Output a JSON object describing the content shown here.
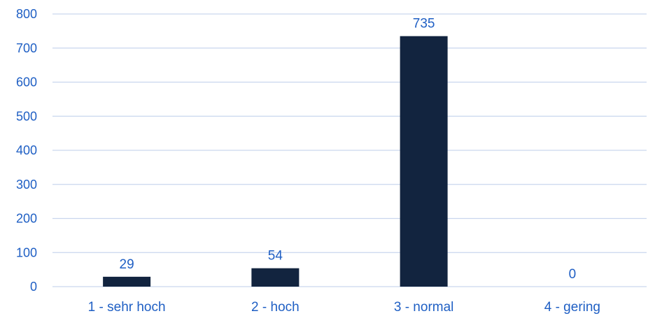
{
  "chart_data": {
    "type": "bar",
    "title": "",
    "xlabel": "",
    "ylabel": "",
    "categories": [
      "1 - sehr hoch",
      "2 - hoch",
      "3 - normal",
      "4 - gering"
    ],
    "values": [
      29,
      54,
      735,
      0
    ],
    "data_labels": [
      "29",
      "54",
      "735",
      "0"
    ],
    "ylim": [
      0,
      800
    ],
    "yticks": [
      0,
      100,
      200,
      300,
      400,
      500,
      600,
      700,
      800
    ],
    "ytick_labels": [
      "0",
      "100",
      "200",
      "300",
      "400",
      "500",
      "600",
      "700",
      "800"
    ],
    "grid": true,
    "legend": "none"
  },
  "colors": {
    "bar": "#12243f",
    "text": "#1f5fc4",
    "grid": "#c9d6ee"
  }
}
